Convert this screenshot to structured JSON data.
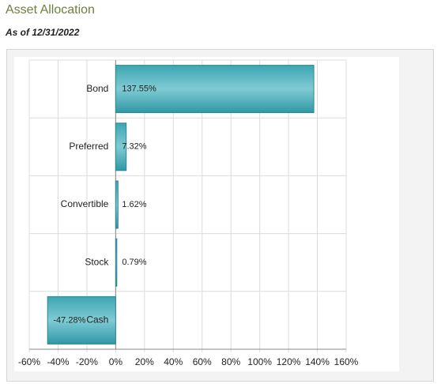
{
  "chart_data": {
    "type": "bar",
    "orientation": "horizontal",
    "title": "Asset Allocation",
    "subtitle": "As of 12/31/2022",
    "categories": [
      "Bond",
      "Preferred",
      "Convertible",
      "Stock",
      "Cash"
    ],
    "values": [
      137.55,
      7.32,
      1.62,
      0.79,
      -47.28
    ],
    "value_labels": [
      "137.55%",
      "7.32%",
      "1.62%",
      "0.79%",
      "-47.28%"
    ],
    "color": "#47aebb",
    "xlim": [
      -60,
      160
    ],
    "xticks": [
      {
        "value": -60,
        "label": "-60%"
      },
      {
        "value": -40,
        "label": "-40%"
      },
      {
        "value": -20,
        "label": "-20%"
      },
      {
        "value": 0,
        "label": "0%"
      },
      {
        "value": 20,
        "label": "20%"
      },
      {
        "value": 40,
        "label": "40%"
      },
      {
        "value": 60,
        "label": "60%"
      },
      {
        "value": 80,
        "label": "80%"
      },
      {
        "value": 100,
        "label": "100%"
      },
      {
        "value": 120,
        "label": "120%"
      },
      {
        "value": 140,
        "label": "140%"
      },
      {
        "value": 160,
        "label": "160%"
      }
    ],
    "grid": true
  }
}
